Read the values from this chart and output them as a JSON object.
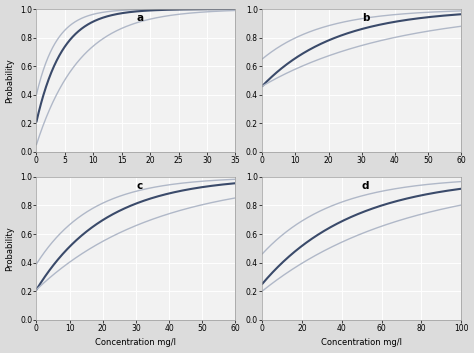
{
  "subplots": [
    {
      "label": "a",
      "xlim": [
        0,
        35
      ],
      "xticks": [
        0,
        5,
        10,
        15,
        20,
        25,
        30,
        35
      ],
      "ylim": [
        0.0,
        1.0
      ],
      "yticks": [
        0.0,
        0.2,
        0.4,
        0.6,
        0.8,
        1.0
      ],
      "curves": [
        {
          "y0": 0.4,
          "rate": 0.28,
          "color": "#b0b8c8",
          "lw": 1.0
        },
        {
          "y0": 0.21,
          "rate": 0.22,
          "color": "#3a4a6a",
          "lw": 1.5
        },
        {
          "y0": 0.05,
          "rate": 0.13,
          "color": "#b0b8c8",
          "lw": 1.0
        }
      ]
    },
    {
      "label": "b",
      "xlim": [
        0,
        60
      ],
      "xticks": [
        0,
        10,
        20,
        30,
        40,
        50,
        60
      ],
      "ylim": [
        0.0,
        1.0
      ],
      "yticks": [
        0.0,
        0.2,
        0.4,
        0.6,
        0.8,
        1.0
      ],
      "curves": [
        {
          "y0": 0.65,
          "rate": 0.055,
          "color": "#b0b8c8",
          "lw": 1.0
        },
        {
          "y0": 0.46,
          "rate": 0.045,
          "color": "#3a4a6a",
          "lw": 1.5
        },
        {
          "y0": 0.46,
          "rate": 0.025,
          "color": "#b0b8c8",
          "lw": 1.0
        }
      ]
    },
    {
      "label": "c",
      "xlim": [
        0,
        60
      ],
      "xticks": [
        0,
        10,
        20,
        30,
        40,
        50,
        60
      ],
      "ylim": [
        0.0,
        1.0
      ],
      "yticks": [
        0.0,
        0.2,
        0.4,
        0.6,
        0.8,
        1.0
      ],
      "curves": [
        {
          "y0": 0.39,
          "rate": 0.06,
          "color": "#b0b8c8",
          "lw": 1.0
        },
        {
          "y0": 0.21,
          "rate": 0.048,
          "color": "#3a4a6a",
          "lw": 1.5
        },
        {
          "y0": 0.21,
          "rate": 0.028,
          "color": "#b0b8c8",
          "lw": 1.0
        }
      ]
    },
    {
      "label": "d",
      "xlim": [
        0,
        100
      ],
      "xticks": [
        0,
        20,
        40,
        60,
        80,
        100
      ],
      "ylim": [
        0.0,
        1.0
      ],
      "yticks": [
        0.0,
        0.2,
        0.4,
        0.6,
        0.8,
        1.0
      ],
      "curves": [
        {
          "y0": 0.46,
          "rate": 0.028,
          "color": "#b0b8c8",
          "lw": 1.0
        },
        {
          "y0": 0.25,
          "rate": 0.022,
          "color": "#3a4a6a",
          "lw": 1.5
        },
        {
          "y0": 0.2,
          "rate": 0.014,
          "color": "#b0b8c8",
          "lw": 1.0
        }
      ]
    }
  ],
  "xlabel": "Concentration mg/l",
  "ylabel": "Probability",
  "background_color": "#f2f2f2",
  "grid_color": "#ffffff",
  "label_fontsize": 6,
  "tick_fontsize": 5.5,
  "fig_facecolor": "#dcdcdc"
}
